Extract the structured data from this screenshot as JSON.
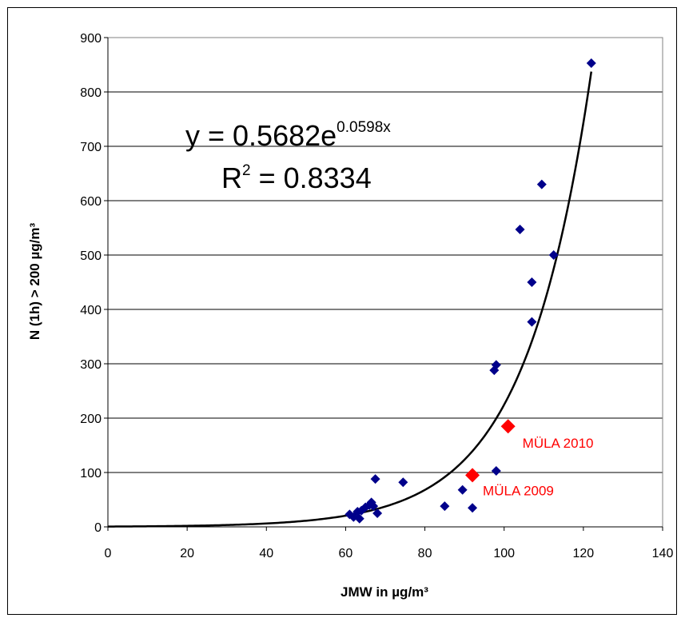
{
  "chart_data": {
    "type": "scatter",
    "xlabel": "JMW in µg/m³",
    "ylabel": "N (1h) > 200 µg/m³",
    "xlim": [
      0,
      140
    ],
    "ylim": [
      0,
      900
    ],
    "x_ticks": [
      0,
      20,
      40,
      60,
      80,
      100,
      120,
      140
    ],
    "y_ticks": [
      0,
      100,
      200,
      300,
      400,
      500,
      600,
      700,
      800,
      900
    ],
    "grid": "horizontal",
    "legend": "none",
    "equation": {
      "prefix": "y = 0.5682e",
      "exponent": "0.0598x"
    },
    "r_squared": {
      "prefix": "R",
      "exponent": "2",
      "suffix": " = 0.8334"
    },
    "trendline": {
      "a": 0.5682,
      "b": 0.0598,
      "x_range": [
        0,
        122
      ],
      "color": "#000000"
    },
    "series": [
      {
        "color": "#00008b",
        "marker": "diamond",
        "points": [
          [
            61,
            23
          ],
          [
            62,
            18
          ],
          [
            63,
            28
          ],
          [
            63.5,
            15
          ],
          [
            64,
            30
          ],
          [
            65,
            36
          ],
          [
            66,
            40
          ],
          [
            66.5,
            45
          ],
          [
            67,
            38
          ],
          [
            67.5,
            88
          ],
          [
            68,
            25
          ],
          [
            74.5,
            82
          ],
          [
            85,
            38
          ],
          [
            89.5,
            68
          ],
          [
            92,
            35
          ],
          [
            97.5,
            288
          ],
          [
            98,
            298
          ],
          [
            98,
            103
          ],
          [
            104,
            547
          ],
          [
            107,
            450
          ],
          [
            107,
            377
          ],
          [
            109.5,
            630
          ],
          [
            112.5,
            500
          ],
          [
            122,
            853
          ]
        ]
      },
      {
        "color": "#ff0000",
        "marker": "diamond-large",
        "points": [
          [
            92,
            95
          ],
          [
            101,
            185
          ]
        ],
        "labels": [
          "MÜLA 2009",
          "MÜLA 2010"
        ]
      }
    ]
  }
}
